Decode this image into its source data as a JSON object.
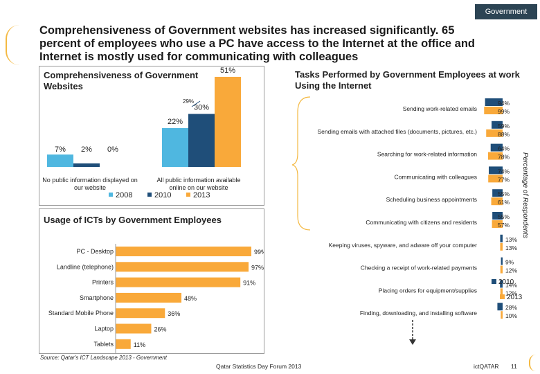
{
  "header": {
    "tab_label": "Government",
    "title": "Comprehensiveness of Government websites has increased significantly. 65 percent of employees who use a PC have access to the Internet at the office and  Internet is mostly used for communicating with colleagues"
  },
  "colors": {
    "series_2008": "#4fb7e0",
    "series_2010": "#1f4e79",
    "series_2013": "#f9a93a",
    "accent": "#f4b942",
    "header_bg": "#2c4454"
  },
  "chart_data": [
    {
      "type": "bar",
      "title": "Comprehensiveness of Government Websites",
      "categories": [
        "No public information displayed on our website",
        "All public information available online on our website"
      ],
      "series": [
        {
          "name": "2008",
          "values": [
            7,
            22
          ]
        },
        {
          "name": "2010",
          "values": [
            2,
            30
          ]
        },
        {
          "name": "2013",
          "values": [
            0,
            51
          ]
        }
      ],
      "annotation": "29%",
      "legend": [
        "2008",
        "2010",
        "2013"
      ],
      "ylim": [
        0,
        55
      ]
    },
    {
      "type": "bar",
      "orientation": "horizontal",
      "title": "Usage of ICTs by Government Employees",
      "categories": [
        "PC - Desktop",
        "Landline (telephone)",
        "Printers",
        "Smartphone",
        "Standard Mobile Phone",
        "Laptop",
        "Tablets"
      ],
      "values": [
        99,
        97,
        91,
        48,
        36,
        26,
        11
      ],
      "xlim": [
        0,
        100
      ]
    },
    {
      "type": "bar",
      "orientation": "horizontal",
      "title": "Tasks Performed by Government Employees at work Using the Internet",
      "categories": [
        "Sending work-related emails",
        "Sending emails with attached files (documents, pictures, etc.)",
        "Searching for work-related information",
        "Communicating with colleagues",
        "Scheduling business appointments",
        "Communicating with citizens and residents",
        "Keeping viruses, spyware, and adware off your computer",
        "Checking a receipt of work-related payments",
        "Placing orders for equipment/supplies",
        "Finding, downloading, and installing software"
      ],
      "series": [
        {
          "name": "2010",
          "values": [
            94,
            59,
            64,
            74,
            55,
            55,
            13,
            9,
            14,
            28
          ]
        },
        {
          "name": "2013",
          "values": [
            99,
            88,
            78,
            77,
            61,
            57,
            13,
            12,
            12,
            10
          ]
        }
      ],
      "ylabel": "Percentage of Respondents",
      "legend": [
        "2010",
        "2013"
      ],
      "xlim": [
        0,
        100
      ]
    }
  ],
  "footer": {
    "source": "Source: Qatar's ICT Landscape 2013 - Government",
    "center": "Qatar Statistics Day Forum 2013",
    "brand": "ictQATAR",
    "page": "11"
  }
}
